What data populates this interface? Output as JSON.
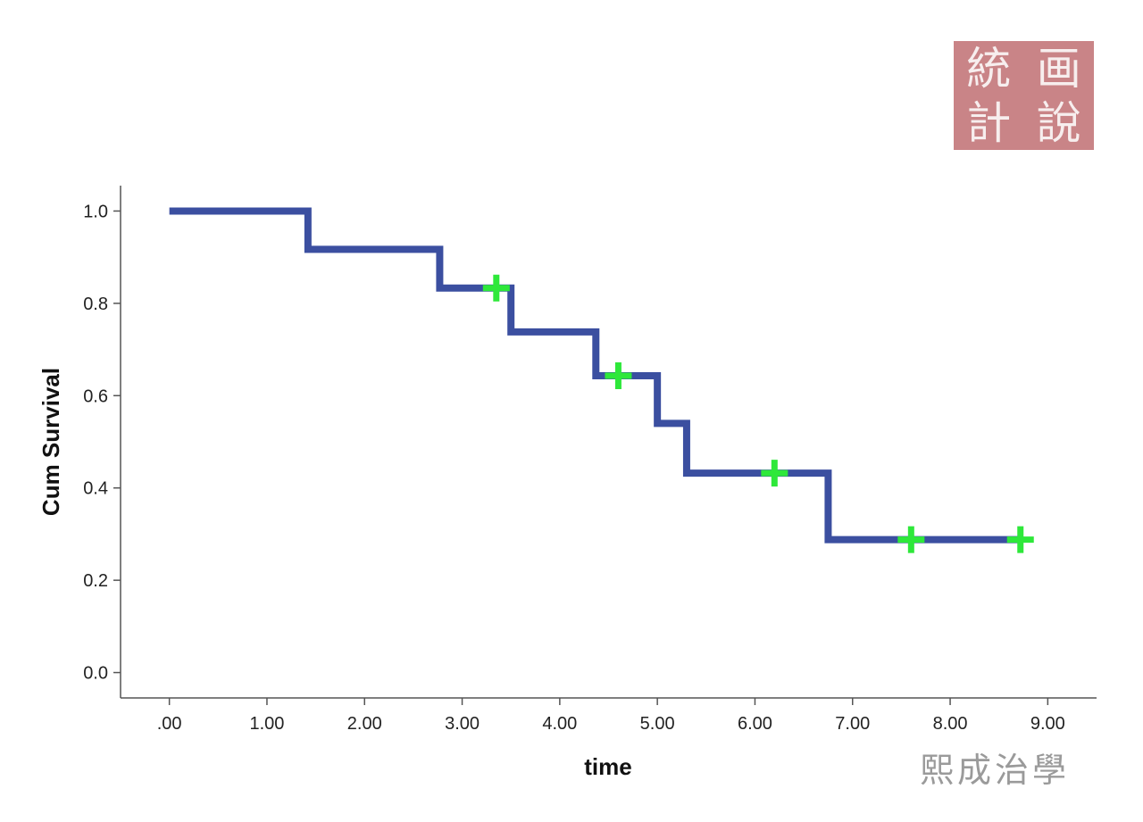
{
  "chart_data": {
    "type": "line",
    "subtype": "kaplan-meier-step",
    "title": "",
    "xlabel": "time",
    "ylabel": "Cum Survival",
    "xlim": [
      -0.5,
      9.5
    ],
    "ylim": [
      -0.055,
      1.055
    ],
    "x_ticks": [
      ".00",
      "1.00",
      "2.00",
      "3.00",
      "4.00",
      "5.00",
      "6.00",
      "7.00",
      "8.00",
      "9.00"
    ],
    "x_tick_values": [
      0,
      1,
      2,
      3,
      4,
      5,
      6,
      7,
      8,
      9
    ],
    "y_ticks": [
      "0.0",
      "0.2",
      "0.4",
      "0.6",
      "0.8",
      "1.0"
    ],
    "y_tick_values": [
      0,
      0.2,
      0.4,
      0.6,
      0.8,
      1.0
    ],
    "grid": false,
    "legend": "none",
    "series": [
      {
        "color": "#3b4fa0",
        "steps": [
          {
            "x": 0.0,
            "y": 1.0
          },
          {
            "x": 1.42,
            "y": 0.917
          },
          {
            "x": 2.77,
            "y": 0.833
          },
          {
            "x": 3.5,
            "y": 0.738
          },
          {
            "x": 4.37,
            "y": 0.643
          },
          {
            "x": 5.0,
            "y": 0.54
          },
          {
            "x": 5.3,
            "y": 0.432
          },
          {
            "x": 6.75,
            "y": 0.288
          }
        ],
        "end_x": 8.75,
        "censored": [
          {
            "x": 3.35,
            "y": 0.833
          },
          {
            "x": 4.6,
            "y": 0.643
          },
          {
            "x": 6.2,
            "y": 0.432
          },
          {
            "x": 7.6,
            "y": 0.288
          },
          {
            "x": 8.72,
            "y": 0.288
          }
        ],
        "censor_color": "#2ee83a"
      }
    ]
  },
  "seal": {
    "chars": [
      "統",
      "画",
      "計",
      "說"
    ],
    "color": "#c98487"
  },
  "watermark": "熙成治學"
}
